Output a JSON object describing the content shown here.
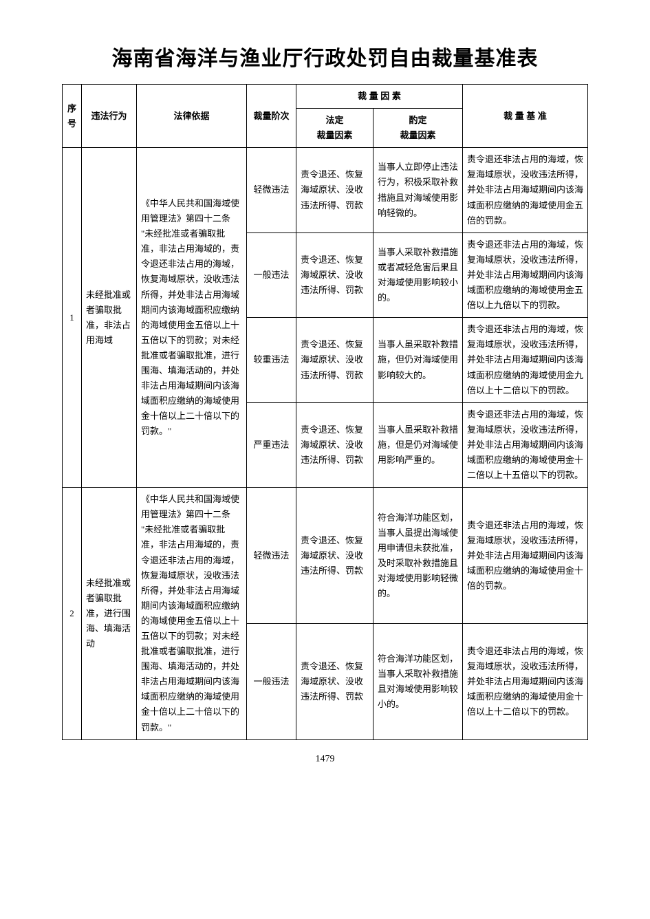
{
  "title": "海南省海洋与渔业厅行政处罚自由裁量基准表",
  "page_number": "1479",
  "headers": {
    "seq": "序号",
    "act": "违法行为",
    "law": "法律依据",
    "stage": "裁量阶次",
    "factor_group": "裁 量 因 素",
    "factor_a_l1": "法定",
    "factor_a_l2": "裁量因素",
    "factor_b_l1": "酌定",
    "factor_b_l2": "裁量因素",
    "standard": "裁 量 基 准"
  },
  "rows": [
    {
      "seq": "1",
      "act": "未经批准或者骗取批准，非法占用海域",
      "law": "《中华人民共和国海域使用管理法》第四十二条 \"未经批准或者骗取批准，非法占用海域的，责令退还非法占用的海域，恢复海域原状，没收违法所得，并处非法占用海域期间内该海域面积应缴纳的海域使用金五倍以上十五倍以下的罚款；对未经批准或者骗取批准，进行围海、填海活动的，并处非法占用海域期间内该海域面积应缴纳的海域使用金十倍以上二十倍以下的罚款。\"",
      "stages": [
        {
          "stage": "轻微违法",
          "fa": "责令退还、恢复海域原状、没收违法所得、罚款",
          "fb": "当事人立即停止违法行为，积极采取补救措施且对海域使用影响轻微的。",
          "std": "责令退还非法占用的海域，恢复海域原状，没收违法所得，并处非法占用海域期间内该海域面积应缴纳的海域使用金五倍的罚款。"
        },
        {
          "stage": "一般违法",
          "fa": "责令退还、恢复海域原状、没收违法所得、罚款",
          "fb": "当事人采取补救措施或者减轻危害后果且对海域使用影响较小的。",
          "std": "责令退还非法占用的海域，恢复海域原状，没收违法所得，并处非法占用海域期间内该海域面积应缴纳的海域使用金五倍以上九倍以下的罚款。"
        },
        {
          "stage": "较重违法",
          "fa": "责令退还、恢复海域原状、没收违法所得、罚款",
          "fb": "当事人虽采取补救措施，但仍对海域使用影响较大的。",
          "fb_small": true,
          "std": "责令退还非法占用的海域，恢复海域原状，没收违法所得，并处非法占用海域期间内该海域面积应缴纳的海域使用金九倍以上十二倍以下的罚款。",
          "std_small": true
        },
        {
          "stage": "严重违法",
          "fa": "责令退还、恢复海域原状、没收违法所得、罚款",
          "fb": "当事人虽采取补救措施，但是仍对海域使用影响严重的。",
          "std": "责令退还非法占用的海域，恢复海域原状，没收违法所得，并处非法占用海域期间内该海域面积应缴纳的海域使用金十二倍以上十五倍以下的罚款。",
          "std_small": true
        }
      ]
    },
    {
      "seq": "2",
      "act": "未经批准或者骗取批准，进行围海、填海活动",
      "law": "《中华人民共和国海域使用管理法》第四十二条 \"未经批准或者骗取批准，非法占用海域的，责令退还非法占用的海域，恢复海域原状，没收违法所得，并处非法占用海域期间内该海域面积应缴纳的海域使用金五倍以上十五倍以下的罚款；对未经批准或者骗取批准，进行围海、填海活动的，并处非法占用海域期间内该海域面积应缴纳的海域使用金十倍以上二十倍以下的罚款。\"",
      "law_small": true,
      "stages": [
        {
          "stage": "轻微违法",
          "fa": "责令退还、恢复海域原状、没收违法所得、罚款",
          "fb": "符合海洋功能区划，当事人虽提出海域使用申请但未获批准，及时采取补救措施且对海域使用影响轻微的。",
          "fb_small": true,
          "std": "责令退还非法占用的海域，恢复海域原状，没收违法所得，并处非法占用海域期间内该海域面积应缴纳的海域使用金十倍的罚款。"
        },
        {
          "stage": "一般违法",
          "fa": "责令退还、恢复海域原状、没收违法所得、罚款",
          "fb": "符合海洋功能区划，当事人采取补救措施且对海域使用影响较小的。",
          "std": "责令退还非法占用的海域，恢复海域原状，没收违法所得，并处非法占用海域期间内该海域面积应缴纳的海域使用金十倍以上十二倍以下的罚款。"
        }
      ]
    }
  ]
}
